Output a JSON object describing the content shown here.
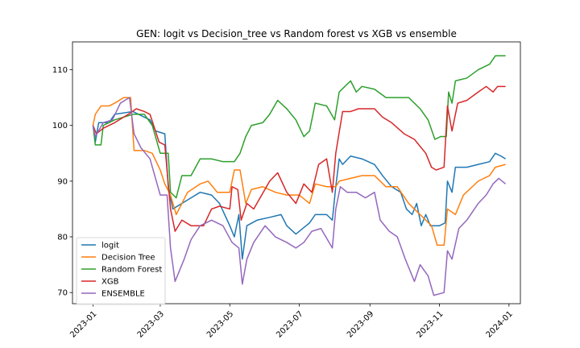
{
  "chart_data": {
    "type": "line",
    "title": "GEN: logit vs Decision_tree vs Random forest vs XGB vs ensemble",
    "xlabel": "",
    "ylabel": "",
    "xlim": [
      "2022-12-14",
      "2024-01-11"
    ],
    "ylim": [
      68,
      115
    ],
    "x_ticks": [
      "2023-01",
      "2023-03",
      "2023-05",
      "2023-07",
      "2023-09",
      "2023-11",
      "2024-01"
    ],
    "y_ticks": [
      70,
      80,
      90,
      100,
      110
    ],
    "grid": false,
    "legend_position": "lower-left",
    "series": [
      {
        "name": "logit",
        "color": "#1f77b4",
        "points": [
          [
            "2023-01-01",
            100
          ],
          [
            "2023-01-03",
            97
          ],
          [
            "2023-01-06",
            100.5
          ],
          [
            "2023-01-15",
            100.5
          ],
          [
            "2023-01-20",
            102
          ],
          [
            "2023-02-05",
            102.5
          ],
          [
            "2023-02-10",
            102
          ],
          [
            "2023-02-20",
            101
          ],
          [
            "2023-02-25",
            99
          ],
          [
            "2023-03-05",
            98.5
          ],
          [
            "2023-03-08",
            89
          ],
          [
            "2023-03-12",
            85
          ],
          [
            "2023-03-20",
            86
          ],
          [
            "2023-03-28",
            87
          ],
          [
            "2023-04-05",
            88
          ],
          [
            "2023-04-15",
            87.5
          ],
          [
            "2023-04-22",
            86
          ],
          [
            "2023-05-01",
            82
          ],
          [
            "2023-05-05",
            80
          ],
          [
            "2023-05-09",
            84
          ],
          [
            "2023-05-12",
            76
          ],
          [
            "2023-05-16",
            82
          ],
          [
            "2023-05-25",
            83
          ],
          [
            "2023-06-05",
            83.5
          ],
          [
            "2023-06-15",
            84
          ],
          [
            "2023-06-20",
            82
          ],
          [
            "2023-06-28",
            80.5
          ],
          [
            "2023-07-10",
            82.5
          ],
          [
            "2023-07-15",
            84
          ],
          [
            "2023-07-25",
            84
          ],
          [
            "2023-07-30",
            83
          ],
          [
            "2023-08-02",
            89
          ],
          [
            "2023-08-05",
            94
          ],
          [
            "2023-08-08",
            93
          ],
          [
            "2023-08-15",
            94.5
          ],
          [
            "2023-08-25",
            94
          ],
          [
            "2023-09-05",
            93
          ],
          [
            "2023-09-12",
            91
          ],
          [
            "2023-09-20",
            89
          ],
          [
            "2023-09-28",
            88
          ],
          [
            "2023-10-03",
            85
          ],
          [
            "2023-10-08",
            84
          ],
          [
            "2023-10-12",
            86
          ],
          [
            "2023-10-16",
            82
          ],
          [
            "2023-10-20",
            84
          ],
          [
            "2023-10-24",
            82
          ],
          [
            "2023-11-01",
            82
          ],
          [
            "2023-11-06",
            82.5
          ],
          [
            "2023-11-08",
            90
          ],
          [
            "2023-11-12",
            88
          ],
          [
            "2023-11-15",
            92.5
          ],
          [
            "2023-11-25",
            92.5
          ],
          [
            "2023-12-05",
            93
          ],
          [
            "2023-12-15",
            93.5
          ],
          [
            "2023-12-20",
            95
          ],
          [
            "2023-12-25",
            94.5
          ],
          [
            "2023-12-29",
            94
          ]
        ]
      },
      {
        "name": "Decision Tree",
        "color": "#ff7f0e",
        "points": [
          [
            "2023-01-01",
            100
          ],
          [
            "2023-01-03",
            102
          ],
          [
            "2023-01-08",
            103.5
          ],
          [
            "2023-01-15",
            103.5
          ],
          [
            "2023-01-20",
            104
          ],
          [
            "2023-01-28",
            105
          ],
          [
            "2023-02-03",
            105
          ],
          [
            "2023-02-06",
            95.5
          ],
          [
            "2023-02-15",
            95.5
          ],
          [
            "2023-02-22",
            95
          ],
          [
            "2023-03-01",
            92
          ],
          [
            "2023-03-05",
            89.5
          ],
          [
            "2023-03-10",
            87.5
          ],
          [
            "2023-03-15",
            84
          ],
          [
            "2023-03-25",
            88
          ],
          [
            "2023-04-05",
            89.5
          ],
          [
            "2023-04-12",
            90
          ],
          [
            "2023-04-20",
            88
          ],
          [
            "2023-05-01",
            88
          ],
          [
            "2023-05-05",
            92
          ],
          [
            "2023-05-10",
            92
          ],
          [
            "2023-05-15",
            86
          ],
          [
            "2023-05-20",
            88.5
          ],
          [
            "2023-05-30",
            89
          ],
          [
            "2023-06-10",
            88
          ],
          [
            "2023-06-20",
            87.5
          ],
          [
            "2023-07-01",
            87.5
          ],
          [
            "2023-07-10",
            86
          ],
          [
            "2023-07-15",
            89.5
          ],
          [
            "2023-07-25",
            89
          ],
          [
            "2023-08-02",
            89
          ],
          [
            "2023-08-05",
            90
          ],
          [
            "2023-08-15",
            90.5
          ],
          [
            "2023-08-25",
            91
          ],
          [
            "2023-09-05",
            91
          ],
          [
            "2023-09-15",
            89
          ],
          [
            "2023-09-25",
            89
          ],
          [
            "2023-10-05",
            86
          ],
          [
            "2023-10-15",
            84
          ],
          [
            "2023-10-25",
            82
          ],
          [
            "2023-10-30",
            78.5
          ],
          [
            "2023-11-05",
            78.5
          ],
          [
            "2023-11-08",
            85
          ],
          [
            "2023-11-15",
            84
          ],
          [
            "2023-11-22",
            87.5
          ],
          [
            "2023-12-05",
            90
          ],
          [
            "2023-12-15",
            91
          ],
          [
            "2023-12-20",
            92.5
          ],
          [
            "2023-12-29",
            93
          ]
        ]
      },
      {
        "name": "Random Forest",
        "color": "#2ca02c",
        "points": [
          [
            "2023-01-01",
            100
          ],
          [
            "2023-01-03",
            96.5
          ],
          [
            "2023-01-08",
            96.5
          ],
          [
            "2023-01-10",
            100
          ],
          [
            "2023-01-20",
            101
          ],
          [
            "2023-02-05",
            102
          ],
          [
            "2023-02-15",
            102
          ],
          [
            "2023-02-22",
            100
          ],
          [
            "2023-03-01",
            95
          ],
          [
            "2023-03-08",
            95
          ],
          [
            "2023-03-10",
            88
          ],
          [
            "2023-03-15",
            87
          ],
          [
            "2023-03-20",
            91
          ],
          [
            "2023-03-28",
            91
          ],
          [
            "2023-04-05",
            94
          ],
          [
            "2023-04-15",
            94
          ],
          [
            "2023-04-25",
            93.5
          ],
          [
            "2023-05-05",
            93.5
          ],
          [
            "2023-05-10",
            95
          ],
          [
            "2023-05-15",
            98
          ],
          [
            "2023-05-20",
            100
          ],
          [
            "2023-05-30",
            100.5
          ],
          [
            "2023-06-05",
            102
          ],
          [
            "2023-06-12",
            104.5
          ],
          [
            "2023-06-20",
            103
          ],
          [
            "2023-06-28",
            101
          ],
          [
            "2023-07-05",
            98
          ],
          [
            "2023-07-10",
            99
          ],
          [
            "2023-07-15",
            104
          ],
          [
            "2023-07-25",
            103.5
          ],
          [
            "2023-08-01",
            101
          ],
          [
            "2023-08-05",
            106
          ],
          [
            "2023-08-10",
            107
          ],
          [
            "2023-08-15",
            108
          ],
          [
            "2023-08-20",
            106
          ],
          [
            "2023-08-25",
            107
          ],
          [
            "2023-09-05",
            106.5
          ],
          [
            "2023-09-15",
            105
          ],
          [
            "2023-09-25",
            105
          ],
          [
            "2023-10-05",
            105
          ],
          [
            "2023-10-15",
            103
          ],
          [
            "2023-10-22",
            101
          ],
          [
            "2023-10-28",
            97.5
          ],
          [
            "2023-11-02",
            98
          ],
          [
            "2023-11-07",
            98
          ],
          [
            "2023-11-09",
            106
          ],
          [
            "2023-11-12",
            104
          ],
          [
            "2023-11-15",
            108
          ],
          [
            "2023-11-25",
            108.5
          ],
          [
            "2023-12-05",
            110
          ],
          [
            "2023-12-15",
            111
          ],
          [
            "2023-12-20",
            112.5
          ],
          [
            "2023-12-29",
            112.5
          ]
        ]
      },
      {
        "name": "XGB",
        "color": "#d62728",
        "points": [
          [
            "2023-01-01",
            100
          ],
          [
            "2023-01-04",
            98.5
          ],
          [
            "2023-01-10",
            99.5
          ],
          [
            "2023-01-20",
            100.5
          ],
          [
            "2023-02-01",
            102
          ],
          [
            "2023-02-08",
            103
          ],
          [
            "2023-02-15",
            102.5
          ],
          [
            "2023-02-20",
            102
          ],
          [
            "2023-02-28",
            97
          ],
          [
            "2023-03-05",
            96.5
          ],
          [
            "2023-03-10",
            85
          ],
          [
            "2023-03-14",
            81
          ],
          [
            "2023-03-20",
            83
          ],
          [
            "2023-03-28",
            82
          ],
          [
            "2023-04-08",
            82
          ],
          [
            "2023-04-15",
            85
          ],
          [
            "2023-04-22",
            85.5
          ],
          [
            "2023-05-01",
            85
          ],
          [
            "2023-05-03",
            89
          ],
          [
            "2023-05-08",
            88.5
          ],
          [
            "2023-05-11",
            83
          ],
          [
            "2023-05-16",
            86
          ],
          [
            "2023-05-22",
            85
          ],
          [
            "2023-06-05",
            90
          ],
          [
            "2023-06-12",
            91.5
          ],
          [
            "2023-06-20",
            88
          ],
          [
            "2023-06-28",
            86
          ],
          [
            "2023-07-05",
            89.5
          ],
          [
            "2023-07-12",
            88
          ],
          [
            "2023-07-18",
            93
          ],
          [
            "2023-07-25",
            94
          ],
          [
            "2023-07-30",
            88
          ],
          [
            "2023-08-02",
            95
          ],
          [
            "2023-08-08",
            102.5
          ],
          [
            "2023-08-15",
            102.5
          ],
          [
            "2023-08-22",
            103
          ],
          [
            "2023-09-05",
            103
          ],
          [
            "2023-09-12",
            101.5
          ],
          [
            "2023-09-20",
            100.5
          ],
          [
            "2023-10-01",
            98.5
          ],
          [
            "2023-10-10",
            97.5
          ],
          [
            "2023-10-20",
            95
          ],
          [
            "2023-10-25",
            92.5
          ],
          [
            "2023-10-29",
            92
          ],
          [
            "2023-11-05",
            92.5
          ],
          [
            "2023-11-08",
            103.5
          ],
          [
            "2023-11-12",
            99
          ],
          [
            "2023-11-17",
            104
          ],
          [
            "2023-11-25",
            104.5
          ],
          [
            "2023-12-05",
            106
          ],
          [
            "2023-12-12",
            107
          ],
          [
            "2023-12-18",
            106
          ],
          [
            "2023-12-22",
            107
          ],
          [
            "2023-12-29",
            107
          ]
        ]
      },
      {
        "name": "ENSEMBLE",
        "color": "#9467bd",
        "points": [
          [
            "2023-01-01",
            100
          ],
          [
            "2023-01-03",
            98
          ],
          [
            "2023-01-10",
            100.5
          ],
          [
            "2023-01-18",
            101
          ],
          [
            "2023-01-25",
            104
          ],
          [
            "2023-02-02",
            105
          ],
          [
            "2023-02-06",
            98.5
          ],
          [
            "2023-02-12",
            96
          ],
          [
            "2023-02-20",
            94
          ],
          [
            "2023-03-01",
            87.5
          ],
          [
            "2023-03-07",
            87.5
          ],
          [
            "2023-03-10",
            78
          ],
          [
            "2023-03-14",
            72
          ],
          [
            "2023-03-22",
            76
          ],
          [
            "2023-03-28",
            79.5
          ],
          [
            "2023-04-05",
            82
          ],
          [
            "2023-04-15",
            83
          ],
          [
            "2023-04-25",
            82
          ],
          [
            "2023-05-03",
            79
          ],
          [
            "2023-05-09",
            78
          ],
          [
            "2023-05-12",
            71.5
          ],
          [
            "2023-05-16",
            76
          ],
          [
            "2023-05-22",
            79
          ],
          [
            "2023-06-01",
            82
          ],
          [
            "2023-06-10",
            80
          ],
          [
            "2023-06-20",
            79
          ],
          [
            "2023-06-28",
            78
          ],
          [
            "2023-07-05",
            79
          ],
          [
            "2023-07-12",
            81
          ],
          [
            "2023-07-20",
            81.5
          ],
          [
            "2023-07-30",
            78
          ],
          [
            "2023-08-02",
            85
          ],
          [
            "2023-08-06",
            89
          ],
          [
            "2023-08-12",
            88
          ],
          [
            "2023-08-20",
            88
          ],
          [
            "2023-08-28",
            87
          ],
          [
            "2023-09-05",
            88
          ],
          [
            "2023-09-10",
            83
          ],
          [
            "2023-09-18",
            81
          ],
          [
            "2023-09-25",
            80
          ],
          [
            "2023-10-02",
            76
          ],
          [
            "2023-10-10",
            72
          ],
          [
            "2023-10-15",
            75
          ],
          [
            "2023-10-22",
            73
          ],
          [
            "2023-10-27",
            69.5
          ],
          [
            "2023-11-05",
            70
          ],
          [
            "2023-11-08",
            77.5
          ],
          [
            "2023-11-12",
            76
          ],
          [
            "2023-11-18",
            81.5
          ],
          [
            "2023-11-25",
            83
          ],
          [
            "2023-12-05",
            86
          ],
          [
            "2023-12-12",
            87.5
          ],
          [
            "2023-12-18",
            89.5
          ],
          [
            "2023-12-23",
            90.5
          ],
          [
            "2023-12-29",
            89.5
          ]
        ]
      }
    ]
  }
}
